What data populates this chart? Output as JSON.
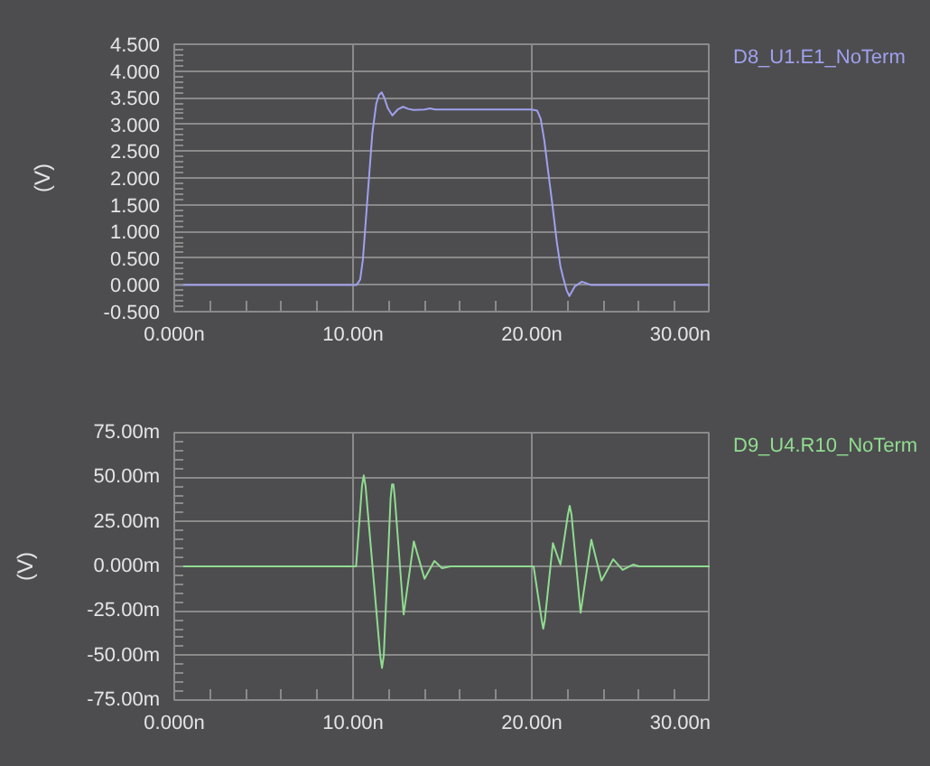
{
  "chart_data": [
    {
      "type": "line",
      "ylabel": "(V)",
      "grid": true,
      "x": [
        0,
        10.2,
        10.4,
        10.55,
        10.8,
        11.08,
        11.3,
        11.45,
        11.6,
        11.75,
        11.95,
        12.2,
        12.5,
        12.8,
        13.1,
        13.4,
        14.0,
        14.3,
        14.6,
        15.0,
        20.0,
        20.3,
        20.5,
        20.7,
        20.9,
        21.15,
        21.4,
        21.6,
        21.76,
        21.95,
        22.1,
        22.4,
        22.8,
        23.3,
        30
      ],
      "series": [
        {
          "name": "D8_U1.E1_NoTerm",
          "color": "#a0a0f0",
          "values": [
            0,
            0,
            0.1,
            0.47,
            1.59,
            2.84,
            3.39,
            3.55,
            3.6,
            3.5,
            3.3,
            3.17,
            3.28,
            3.33,
            3.29,
            3.27,
            3.28,
            3.3,
            3.28,
            3.28,
            3.28,
            3.26,
            3.1,
            2.7,
            2.16,
            1.5,
            0.8,
            0.35,
            0.13,
            -0.1,
            -0.21,
            -0.03,
            0.06,
            0,
            0
          ]
        }
      ],
      "xlim": [
        0,
        30
      ],
      "ylim": [
        -0.5,
        4.5
      ],
      "xticks": [
        {
          "value": 0,
          "label": "0.000n"
        },
        {
          "value": 2,
          "label": null
        },
        {
          "value": 4,
          "label": null
        },
        {
          "value": 6,
          "label": null
        },
        {
          "value": 8,
          "label": null
        },
        {
          "value": 10,
          "label": "10.00n"
        },
        {
          "value": 12,
          "label": null
        },
        {
          "value": 14,
          "label": null
        },
        {
          "value": 16,
          "label": null
        },
        {
          "value": 18,
          "label": null
        },
        {
          "value": 20,
          "label": "20.00n"
        },
        {
          "value": 22,
          "label": null
        },
        {
          "value": 24,
          "label": null
        },
        {
          "value": 26,
          "label": null
        },
        {
          "value": 28,
          "label": null
        },
        {
          "value": 30,
          "label": "30.00n"
        }
      ],
      "yticks": [
        {
          "value": -0.5,
          "label": "-0.500"
        },
        {
          "value": -0.4,
          "label": null
        },
        {
          "value": -0.3,
          "label": null
        },
        {
          "value": -0.2,
          "label": null
        },
        {
          "value": -0.1,
          "label": null
        },
        {
          "value": 0,
          "label": "0.000"
        },
        {
          "value": 0.1,
          "label": null
        },
        {
          "value": 0.2,
          "label": null
        },
        {
          "value": 0.3,
          "label": null
        },
        {
          "value": 0.4,
          "label": null
        },
        {
          "value": 0.5,
          "label": "0.500"
        },
        {
          "value": 0.6,
          "label": null
        },
        {
          "value": 0.7,
          "label": null
        },
        {
          "value": 0.8,
          "label": null
        },
        {
          "value": 0.9,
          "label": null
        },
        {
          "value": 1,
          "label": "1.000"
        },
        {
          "value": 1.1,
          "label": null
        },
        {
          "value": 1.2,
          "label": null
        },
        {
          "value": 1.3,
          "label": null
        },
        {
          "value": 1.4,
          "label": null
        },
        {
          "value": 1.5,
          "label": "1.500"
        },
        {
          "value": 1.6,
          "label": null
        },
        {
          "value": 1.7,
          "label": null
        },
        {
          "value": 1.8,
          "label": null
        },
        {
          "value": 1.9,
          "label": null
        },
        {
          "value": 2,
          "label": "2.000"
        },
        {
          "value": 2.1,
          "label": null
        },
        {
          "value": 2.2,
          "label": null
        },
        {
          "value": 2.3,
          "label": null
        },
        {
          "value": 2.4,
          "label": null
        },
        {
          "value": 2.5,
          "label": "2.500"
        },
        {
          "value": 2.6,
          "label": null
        },
        {
          "value": 2.7,
          "label": null
        },
        {
          "value": 2.8,
          "label": null
        },
        {
          "value": 2.9,
          "label": null
        },
        {
          "value": 3,
          "label": "3.000"
        },
        {
          "value": 3.1,
          "label": null
        },
        {
          "value": 3.2,
          "label": null
        },
        {
          "value": 3.3,
          "label": null
        },
        {
          "value": 3.4,
          "label": null
        },
        {
          "value": 3.5,
          "label": "3.500"
        },
        {
          "value": 3.6,
          "label": null
        },
        {
          "value": 3.7,
          "label": null
        },
        {
          "value": 3.8,
          "label": null
        },
        {
          "value": 3.9,
          "label": null
        },
        {
          "value": 4,
          "label": "4.000"
        },
        {
          "value": 4.1,
          "label": null
        },
        {
          "value": 4.2,
          "label": null
        },
        {
          "value": 4.3,
          "label": null
        },
        {
          "value": 4.4,
          "label": null
        },
        {
          "value": 4.5,
          "label": "4.500"
        }
      ]
    },
    {
      "type": "line",
      "ylabel": "(V)",
      "grid": true,
      "x": [
        0,
        10.17,
        10.5,
        10.6,
        10.7,
        11.52,
        11.62,
        11.72,
        12.1,
        12.18,
        12.26,
        12.34,
        12.83,
        13.4,
        14.0,
        14.55,
        14.98,
        15.45,
        20.1,
        20.55,
        20.64,
        20.73,
        21.18,
        21.6,
        22.02,
        22.12,
        22.22,
        22.73,
        23.33,
        23.9,
        24.55,
        25.08,
        25.66,
        26.0,
        30
      ],
      "series": [
        {
          "name": "D9_U4.R10_NoTerm",
          "color": "#90dc90",
          "values": [
            0,
            0,
            45,
            51,
            45,
            -50,
            -57,
            -50,
            38,
            46,
            46,
            38,
            -27,
            14,
            -7,
            3,
            -1,
            0,
            0,
            -30,
            -35,
            -30,
            13,
            1,
            29,
            34,
            29,
            -26,
            15,
            -8,
            4,
            -2,
            1,
            0,
            0
          ]
        }
      ],
      "xlim": [
        0,
        30
      ],
      "ylim": [
        -75,
        75
      ],
      "xticks": [
        {
          "value": 0,
          "label": "0.000n"
        },
        {
          "value": 2,
          "label": null
        },
        {
          "value": 4,
          "label": null
        },
        {
          "value": 6,
          "label": null
        },
        {
          "value": 8,
          "label": null
        },
        {
          "value": 10,
          "label": "10.00n"
        },
        {
          "value": 12,
          "label": null
        },
        {
          "value": 14,
          "label": null
        },
        {
          "value": 16,
          "label": null
        },
        {
          "value": 18,
          "label": null
        },
        {
          "value": 20,
          "label": "20.00n"
        },
        {
          "value": 22,
          "label": null
        },
        {
          "value": 24,
          "label": null
        },
        {
          "value": 26,
          "label": null
        },
        {
          "value": 28,
          "label": null
        },
        {
          "value": 30,
          "label": "30.00n"
        }
      ],
      "yticks": [
        {
          "value": -75,
          "label": "-75.00m"
        },
        {
          "value": -70,
          "label": null
        },
        {
          "value": -65,
          "label": null
        },
        {
          "value": -60,
          "label": null
        },
        {
          "value": -55,
          "label": null
        },
        {
          "value": -50,
          "label": "-50.00m"
        },
        {
          "value": -45,
          "label": null
        },
        {
          "value": -40,
          "label": null
        },
        {
          "value": -35,
          "label": null
        },
        {
          "value": -30,
          "label": null
        },
        {
          "value": -25,
          "label": "-25.00m"
        },
        {
          "value": -20,
          "label": null
        },
        {
          "value": -15,
          "label": null
        },
        {
          "value": -10,
          "label": null
        },
        {
          "value": -5,
          "label": null
        },
        {
          "value": 0,
          "label": "0.000m"
        },
        {
          "value": 5,
          "label": null
        },
        {
          "value": 10,
          "label": null
        },
        {
          "value": 15,
          "label": null
        },
        {
          "value": 20,
          "label": null
        },
        {
          "value": 25,
          "label": "25.00m"
        },
        {
          "value": 30,
          "label": null
        },
        {
          "value": 35,
          "label": null
        },
        {
          "value": 40,
          "label": null
        },
        {
          "value": 45,
          "label": null
        },
        {
          "value": 50,
          "label": "50.00m"
        },
        {
          "value": 55,
          "label": null
        },
        {
          "value": 60,
          "label": null
        },
        {
          "value": 65,
          "label": null
        },
        {
          "value": 70,
          "label": null
        },
        {
          "value": 75,
          "label": "75.00m"
        }
      ]
    }
  ]
}
